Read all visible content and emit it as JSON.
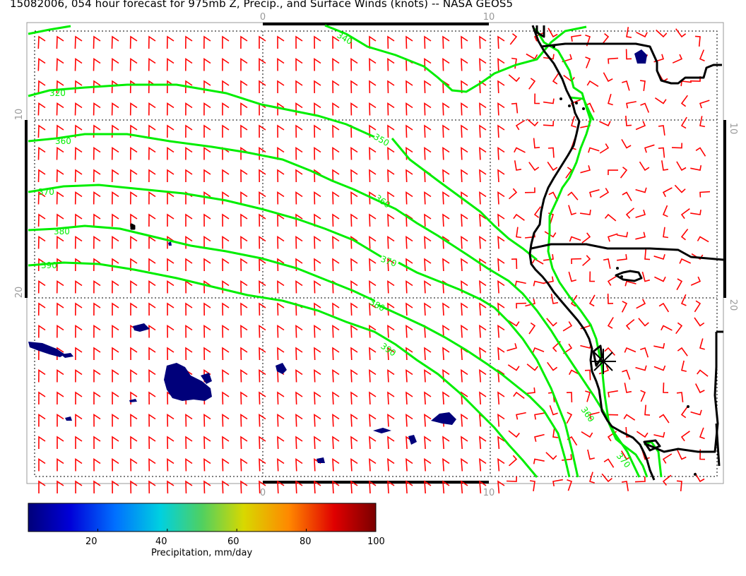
{
  "title": "15082006, 054 hour forecast for 975mb Z, Precip., and Surface Winds (knots) -- NASA GEOS5",
  "colors": {
    "wind_barb": "#ff0000",
    "contour": "#00ee00",
    "coastline": "#000000",
    "precip": "#00007a",
    "grid": "#000000"
  },
  "axes": {
    "top_ticks": [
      "0",
      "10"
    ],
    "bottom_ticks": [
      "0",
      "10"
    ],
    "left_ticks": [
      "10",
      "20"
    ],
    "right_ticks": [
      "10",
      "20"
    ]
  },
  "contours": {
    "labels": [
      "340",
      "320",
      "360",
      "350",
      "370",
      "360",
      "380",
      "390",
      "370",
      "380",
      "390",
      "360",
      "370"
    ],
    "level_units": "m"
  },
  "colorbar": {
    "title": "Precipitation, mm/day",
    "tick_labels": [
      "20",
      "40",
      "60",
      "80",
      "100"
    ],
    "min": 0,
    "max": 100
  },
  "icons": {
    "station_marker": "asterisk-icon"
  }
}
